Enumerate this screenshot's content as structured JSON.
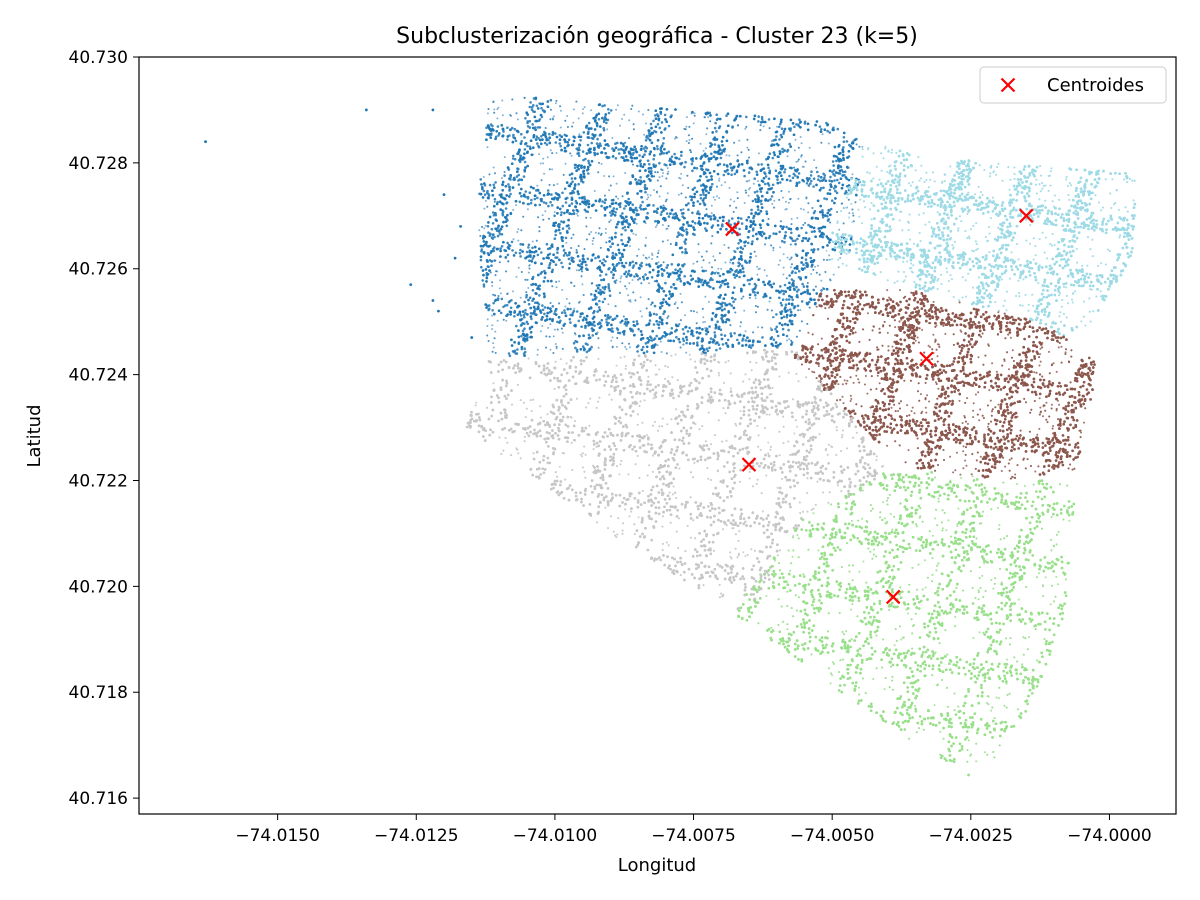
{
  "chart_data": {
    "type": "scatter",
    "title": "Subclusterización geográfica - Cluster 23 (k=5)",
    "xlabel": "Longitud",
    "ylabel": "Latitud",
    "xlim": [
      -74.0175,
      -73.9988
    ],
    "ylim": [
      40.7157,
      40.73
    ],
    "xticks": [
      -74.015,
      -74.0125,
      -74.01,
      -74.0075,
      -74.005,
      -74.0025,
      -74.0
    ],
    "xtick_labels": [
      "−74.0150",
      "−74.0125",
      "−74.0100",
      "−74.0075",
      "−74.0050",
      "−74.0025",
      "−74.0000"
    ],
    "yticks": [
      40.716,
      40.718,
      40.72,
      40.722,
      40.724,
      40.726,
      40.728,
      40.73
    ],
    "ytick_labels": [
      "40.716",
      "40.718",
      "40.720",
      "40.722",
      "40.724",
      "40.726",
      "40.728",
      "40.730"
    ],
    "grid": false,
    "legend_position": "top-right",
    "legend": [
      {
        "label": "Centroides",
        "marker": "x",
        "color": "#ff0000"
      }
    ],
    "clusters": [
      {
        "id": 0,
        "color": "#1f77b4",
        "region": [
          [
            -74.0112,
            40.7293
          ],
          [
            -74.0052,
            40.7288
          ],
          [
            -74.0044,
            40.7284
          ],
          [
            -74.0047,
            40.7262
          ],
          [
            -74.0052,
            40.7254
          ],
          [
            -74.0057,
            40.7245
          ],
          [
            -74.0065,
            40.7245
          ],
          [
            -74.0072,
            40.7244
          ],
          [
            -74.01,
            40.7244
          ],
          [
            -74.0112,
            40.7243
          ],
          [
            -74.0114,
            40.727
          ]
        ]
      },
      {
        "id": 1,
        "color": "#9edae5",
        "region": [
          [
            -74.0044,
            40.7284
          ],
          [
            -74.0032,
            40.7281
          ],
          [
            -73.9995,
            40.7278
          ],
          [
            -73.9996,
            40.7262
          ],
          [
            -74.0003,
            40.725
          ],
          [
            -74.0008,
            40.7247
          ],
          [
            -74.0013,
            40.725
          ],
          [
            -74.0035,
            40.7256
          ],
          [
            -74.0052,
            40.7262
          ]
        ]
      },
      {
        "id": 2,
        "color": "#8c564b",
        "region": [
          [
            -74.0052,
            40.7256
          ],
          [
            -74.0036,
            40.7256
          ],
          [
            -74.0013,
            40.725
          ],
          [
            -74.0008,
            40.7247
          ],
          [
            -74.0002,
            40.7242
          ],
          [
            -74.0006,
            40.7222
          ],
          [
            -74.0018,
            40.722
          ],
          [
            -74.0034,
            40.7222
          ],
          [
            -74.004,
            40.7225
          ],
          [
            -74.0057,
            40.7243
          ]
        ]
      },
      {
        "id": 3,
        "color": "#c7c7c7",
        "region": [
          [
            -74.0112,
            40.7243
          ],
          [
            -74.0072,
            40.7244
          ],
          [
            -74.0057,
            40.7245
          ],
          [
            -74.0045,
            40.723
          ],
          [
            -74.004,
            40.7222
          ],
          [
            -74.0045,
            40.7218
          ],
          [
            -74.0055,
            40.7213
          ],
          [
            -74.0063,
            40.7198
          ],
          [
            -74.0068,
            40.7195
          ],
          [
            -74.009,
            40.721
          ],
          [
            -74.011,
            40.7225
          ],
          [
            -74.0116,
            40.723
          ]
        ]
      },
      {
        "id": 4,
        "color": "#98df8a",
        "region": [
          [
            -74.004,
            40.7222
          ],
          [
            -74.0034,
            40.7222
          ],
          [
            -74.0018,
            40.722
          ],
          [
            -74.0006,
            40.722
          ],
          [
            -74.0008,
            40.7195
          ],
          [
            -74.0013,
            40.718
          ],
          [
            -74.002,
            40.7168
          ],
          [
            -74.0025,
            40.7164
          ],
          [
            -74.0035,
            40.717
          ],
          [
            -74.0055,
            40.7185
          ],
          [
            -74.0068,
            40.7195
          ],
          [
            -74.0063,
            40.7202
          ],
          [
            -74.0055,
            40.7213
          ]
        ]
      }
    ],
    "outliers": [
      {
        "x": -74.0163,
        "y": 40.7284,
        "cluster": 0
      },
      {
        "x": -74.0134,
        "y": 40.729,
        "cluster": 0
      },
      {
        "x": -74.0122,
        "y": 40.729,
        "cluster": 0
      },
      {
        "x": -74.0126,
        "y": 40.7257,
        "cluster": 0
      },
      {
        "x": -74.0118,
        "y": 40.7262,
        "cluster": 0
      },
      {
        "x": -74.0117,
        "y": 40.7268,
        "cluster": 0
      },
      {
        "x": -74.012,
        "y": 40.7274,
        "cluster": 0
      },
      {
        "x": -74.0122,
        "y": 40.7254,
        "cluster": 0
      },
      {
        "x": -74.0121,
        "y": 40.7252,
        "cluster": 0
      },
      {
        "x": -74.0115,
        "y": 40.7247,
        "cluster": 0
      }
    ],
    "centroids": [
      {
        "x": -74.0068,
        "y": 40.72675
      },
      {
        "x": -74.0015,
        "y": 40.727
      },
      {
        "x": -74.0033,
        "y": 40.7243
      },
      {
        "x": -74.0065,
        "y": 40.7223
      },
      {
        "x": -74.0039,
        "y": 40.7198
      }
    ]
  }
}
